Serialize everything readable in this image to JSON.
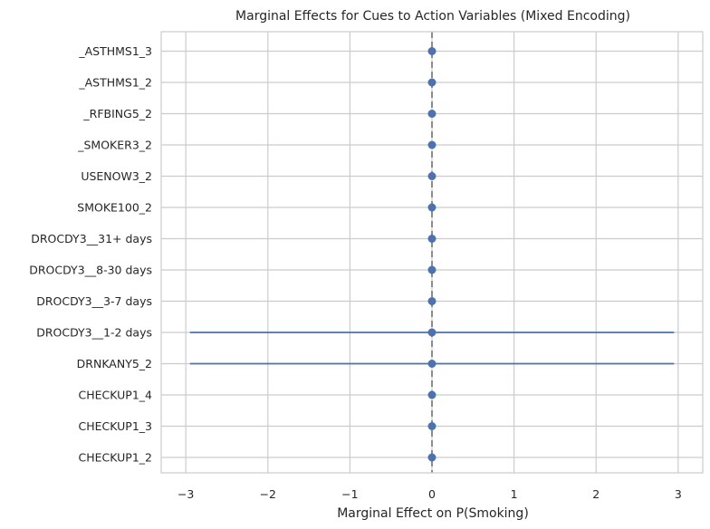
{
  "chart_data": {
    "type": "scatter",
    "title": "Marginal Effects for Cues to Action Variables (Mixed Encoding)",
    "xlabel": "Marginal Effect on P(Smoking)",
    "ylabel": "",
    "xlim": [
      -3.3,
      3.3
    ],
    "xticks": [
      -3,
      -2,
      -1,
      0,
      1,
      2,
      3
    ],
    "xtick_labels": [
      "−3",
      "−2",
      "−1",
      "0",
      "1",
      "2",
      "3"
    ],
    "reference_line_x": 0,
    "grid": true,
    "categories": [
      "CHECKUP1_2",
      "CHECKUP1_3",
      "CHECKUP1_4",
      "DRNKANY5_2",
      "DROCDY3__1-2 days",
      "DROCDY3__3-7 days",
      "DROCDY3__8-30 days",
      "DROCDY3__31+ days",
      "SMOKE100_2",
      "USENOW3_2",
      "_SMOKER3_2",
      "_RFBING5_2",
      "_ASTHMS1_2",
      "_ASTHMS1_3"
    ],
    "values": [
      0,
      0,
      0,
      0,
      0,
      0,
      0,
      0,
      0,
      0,
      0,
      0,
      0,
      0
    ],
    "ci_lower": [
      0,
      0,
      0,
      -2.95,
      -2.95,
      0,
      0,
      0,
      0,
      0,
      0,
      0,
      0,
      0
    ],
    "ci_upper": [
      0,
      0,
      0,
      2.95,
      2.95,
      0,
      0,
      0,
      0,
      0,
      0,
      0,
      0,
      0
    ],
    "colors": {
      "point": "#4c72b0",
      "errorbar": "#4c72b0",
      "zero_line": "#808080",
      "grid": "#cccccc",
      "spine": "#cccccc"
    }
  }
}
